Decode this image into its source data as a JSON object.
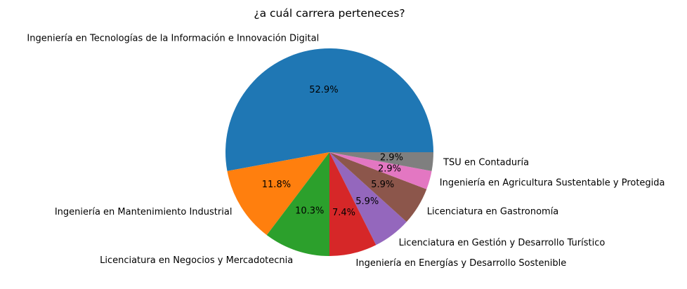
{
  "chart_data": {
    "type": "pie",
    "title": "¿a cuál carrera perteneces?",
    "categories": [
      "Ingeniería en Tecnologías de la Información e Innovación Digital",
      "Ingeniería en Mantenimiento Industrial",
      "Licenciatura en Negocios y Mercadotecnia",
      "Ingeniería en Energías y Desarrollo Sostenible",
      "Licenciatura en Gestión y Desarrollo Turístico",
      "Licenciatura en Gastronomía",
      "Ingeniería en Agricultura Sustentable y Protegida",
      "TSU en Contaduría"
    ],
    "values": [
      52.9,
      11.8,
      10.3,
      7.4,
      5.9,
      5.9,
      2.9,
      2.9
    ],
    "pct_labels": [
      "52.9%",
      "11.8%",
      "10.3%",
      "7.4%",
      "5.9%",
      "5.9%",
      "2.9%",
      "2.9%"
    ],
    "colors": [
      "#1f77b4",
      "#ff7f0e",
      "#2ca02c",
      "#d62728",
      "#9467bd",
      "#8c564b",
      "#e377c2",
      "#7f7f7f"
    ]
  }
}
